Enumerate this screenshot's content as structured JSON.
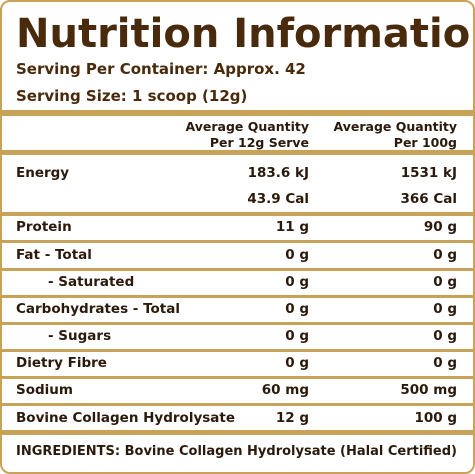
{
  "title": "Nutrition Information",
  "serving": [
    "Serving Per Container: Approx. 42",
    "Serving Size: 1 scoop (12g)"
  ],
  "table": {
    "header": [
      [
        "Average Quantity",
        "Per 12g Serve"
      ],
      [
        "Average Quantity",
        "Per 100g"
      ]
    ],
    "rows": [
      {
        "label": "Energy",
        "per_serve": "183.6 kJ",
        "per_100g": "1531 kJ"
      },
      {
        "per_serve": "43.9 Cal",
        "per_100g": "366 Cal"
      },
      {
        "label": "Protein",
        "per_serve": "11 g",
        "per_100g": "90 g"
      },
      {
        "label": "Fat - Total",
        "per_serve": "0 g",
        "per_100g": "0 g"
      },
      {
        "label": "- Saturated",
        "per_serve": "0 g",
        "per_100g": "0 g"
      },
      {
        "label": "Carbohydrates - Total",
        "per_serve": "0 g",
        "per_100g": "0 g"
      },
      {
        "label": "- Sugars",
        "per_serve": "0 g",
        "per_100g": "0 g"
      },
      {
        "label": "Dietry Fibre",
        "per_serve": "0 g",
        "per_100g": "0 g"
      },
      {
        "label": "Sodium",
        "per_serve": "60 mg",
        "per_100g": "500 mg"
      },
      {
        "label": "Bovine Collagen Hydrolysate",
        "per_serve": "12 g",
        "per_100g": "100 g"
      }
    ]
  },
  "ingredients": "INGREDIENTS: Bovine Collagen Hydrolysate (Halal Certified)"
}
